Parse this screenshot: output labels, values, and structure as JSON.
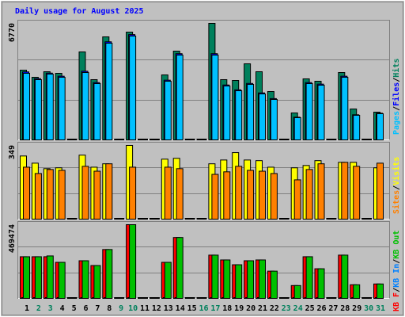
{
  "chart_data": [
    {
      "type": "bar",
      "title": "Daily usage for August 2025",
      "title_color": "#0000ff",
      "legend_separator": "/",
      "ylim": [
        0,
        6770
      ],
      "yticks": [
        6770
      ],
      "grid": true,
      "series": [
        {
          "name": "Hits",
          "color": "#00805c",
          "values": [
            4052,
            3638,
            3960,
            3868,
            0,
            5112,
            3500,
            5987,
            0,
            6263,
            0,
            0,
            3776,
            5158,
            0,
            0,
            6770,
            3500,
            3454,
            4421,
            3960,
            2809,
            0,
            1566,
            3546,
            3408,
            0,
            3914,
            1796,
            0,
            1612
          ]
        },
        {
          "name": "Files",
          "color": "#0000ff",
          "values": [
            3950,
            3560,
            3880,
            3700,
            0,
            3990,
            3330,
            5700,
            0,
            6120,
            0,
            0,
            3470,
            5010,
            0,
            0,
            5010,
            3190,
            2910,
            3280,
            2730,
            2400,
            0,
            1320,
            3330,
            3240,
            0,
            3700,
            1460,
            0,
            1550
          ]
        },
        {
          "name": "Pages",
          "color": "#00c0ff",
          "values": [
            3868,
            3500,
            3822,
            3638,
            0,
            3914,
            3270,
            5618,
            0,
            6033,
            0,
            0,
            3408,
            4927,
            0,
            0,
            4927,
            3131,
            2855,
            3224,
            2671,
            2349,
            0,
            1289,
            3270,
            3177,
            0,
            3638,
            1428,
            0,
            1520
          ]
        }
      ]
    },
    {
      "type": "bar",
      "ylim": [
        0,
        349
      ],
      "yticks": [
        349
      ],
      "grid": true,
      "series": [
        {
          "name": "Visits",
          "color": "#ffff00",
          "values": [
            299,
            265,
            239,
            243,
            0,
            303,
            246,
            262,
            0,
            349,
            0,
            0,
            284,
            288,
            0,
            0,
            262,
            280,
            315,
            280,
            277,
            246,
            0,
            243,
            254,
            277,
            0,
            269,
            269,
            0,
            243
          ]
        },
        {
          "name": "Sites",
          "color": "#ff8000",
          "values": [
            246,
            216,
            235,
            231,
            0,
            250,
            227,
            262,
            0,
            246,
            0,
            0,
            246,
            239,
            0,
            0,
            212,
            224,
            250,
            231,
            227,
            216,
            0,
            186,
            235,
            262,
            0,
            269,
            250,
            0,
            265
          ]
        }
      ]
    },
    {
      "type": "bar",
      "ylim": [
        0,
        469474
      ],
      "yticks": [
        469474
      ],
      "grid": true,
      "categories": [
        "1",
        "2",
        "3",
        "4",
        "5",
        "6",
        "7",
        "8",
        "9",
        "10",
        "11",
        "12",
        "13",
        "14",
        "15",
        "16",
        "17",
        "18",
        "19",
        "20",
        "21",
        "22",
        "23",
        "24",
        "25",
        "26",
        "27",
        "28",
        "29",
        "30",
        "31"
      ],
      "category_colors": [
        "#000000",
        "#00805c",
        "#00805c",
        "#000000",
        "#000000",
        "#000000",
        "#000000",
        "#000000",
        "#00805c",
        "#00805c",
        "#000000",
        "#000000",
        "#000000",
        "#000000",
        "#000000",
        "#00805c",
        "#00805c",
        "#000000",
        "#000000",
        "#000000",
        "#000000",
        "#000000",
        "#00805c",
        "#00805c",
        "#000000",
        "#000000",
        "#000000",
        "#000000",
        "#000000",
        "#00805c",
        "#00805c"
      ],
      "series": [
        {
          "name": "KB F",
          "color": "#ff0000",
          "values": [
            265356,
            265356,
            265356,
            229635,
            0,
            239841,
            209223,
            311283,
            0,
            469474,
            0,
            0,
            229635,
            387828,
            0,
            0,
            275562,
            244944,
            214326,
            239841,
            244944,
            173502,
            0,
            81648,
            265356,
            188811,
            0,
            275562,
            86751,
            0,
            91854
          ]
        },
        {
          "name": "KB In",
          "color": "#0080ff",
          "values": [
            0,
            0,
            0,
            0,
            0,
            0,
            0,
            0,
            0,
            0,
            0,
            0,
            0,
            0,
            0,
            0,
            0,
            0,
            0,
            0,
            0,
            0,
            0,
            0,
            0,
            0,
            0,
            0,
            0,
            0,
            0
          ]
        },
        {
          "name": "KB Out",
          "color": "#00c000",
          "values": [
            265356,
            265356,
            270459,
            229635,
            0,
            239841,
            209223,
            311283,
            0,
            469474,
            0,
            0,
            229635,
            387828,
            0,
            0,
            275562,
            244944,
            214326,
            239841,
            244944,
            173502,
            0,
            81648,
            265356,
            188811,
            0,
            275562,
            86751,
            0,
            91854
          ]
        }
      ]
    }
  ]
}
